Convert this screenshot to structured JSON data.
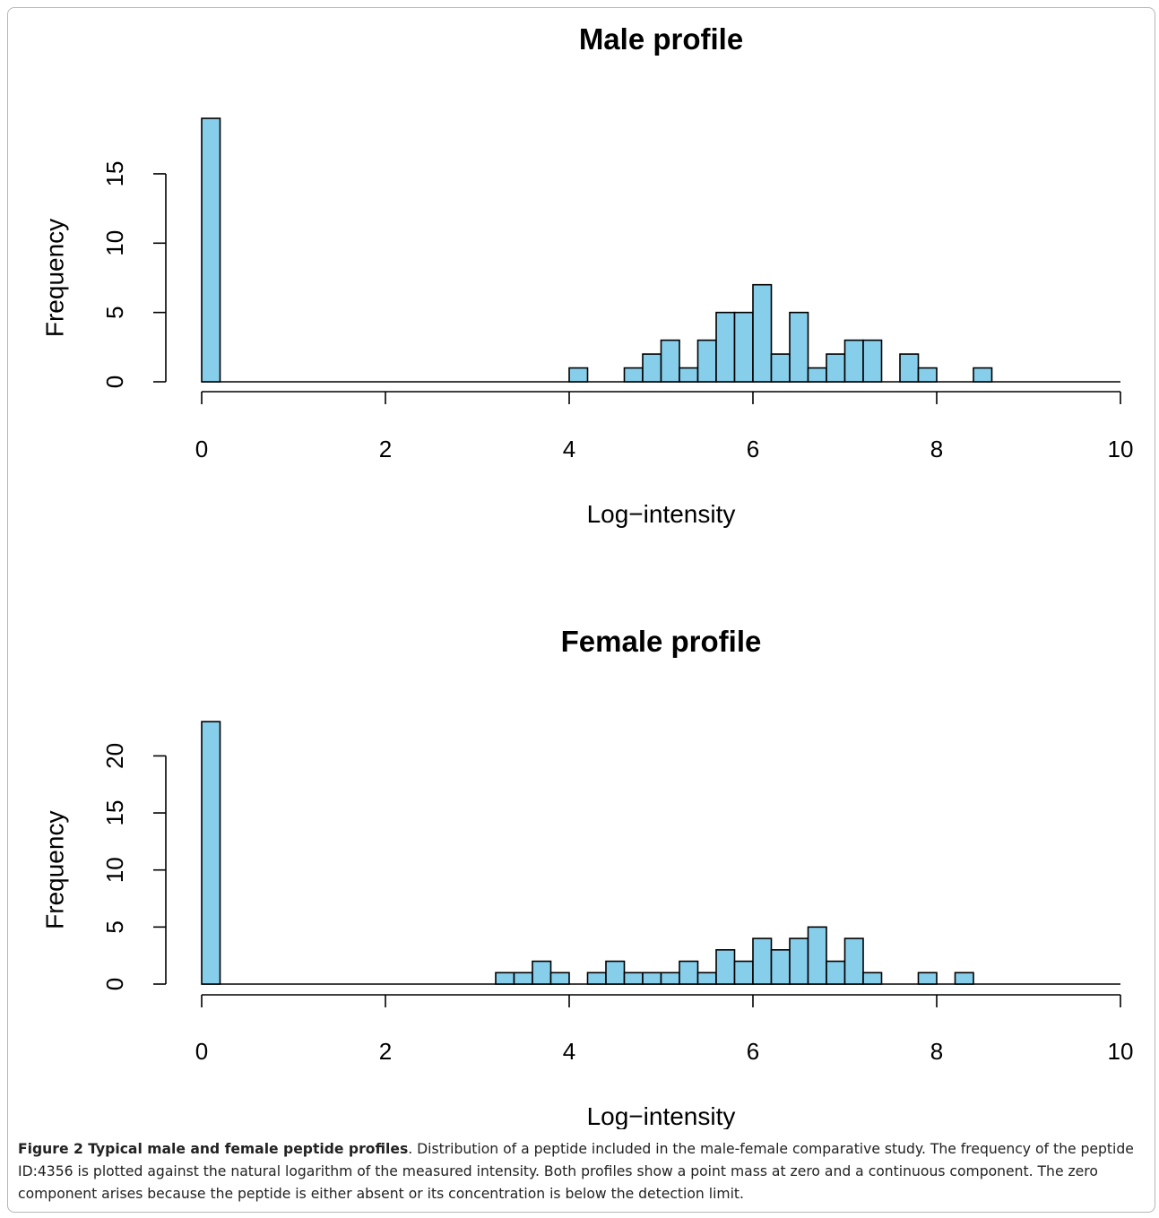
{
  "chart_data": [
    {
      "type": "bar",
      "title": "Male profile",
      "xlabel": "Log−intensity",
      "ylabel": "Frequency",
      "xlim": [
        0,
        10
      ],
      "ylim": [
        0,
        19
      ],
      "x_ticks": [
        "0",
        "2",
        "4",
        "6",
        "8",
        "10"
      ],
      "y_ticks": [
        "0",
        "5",
        "10",
        "15"
      ],
      "bin_width": 0.2,
      "bar_color": "#87ceeb",
      "bins": [
        {
          "x0": 0.0,
          "count": 19
        },
        {
          "x0": 4.0,
          "count": 1
        },
        {
          "x0": 4.6,
          "count": 1
        },
        {
          "x0": 4.8,
          "count": 2
        },
        {
          "x0": 5.0,
          "count": 3
        },
        {
          "x0": 5.2,
          "count": 1
        },
        {
          "x0": 5.4,
          "count": 3
        },
        {
          "x0": 5.6,
          "count": 5
        },
        {
          "x0": 5.8,
          "count": 5
        },
        {
          "x0": 6.0,
          "count": 7
        },
        {
          "x0": 6.2,
          "count": 2
        },
        {
          "x0": 6.4,
          "count": 5
        },
        {
          "x0": 6.6,
          "count": 1
        },
        {
          "x0": 6.8,
          "count": 2
        },
        {
          "x0": 7.0,
          "count": 3
        },
        {
          "x0": 7.2,
          "count": 3
        },
        {
          "x0": 7.6,
          "count": 2
        },
        {
          "x0": 7.8,
          "count": 1
        },
        {
          "x0": 8.4,
          "count": 1
        }
      ]
    },
    {
      "type": "bar",
      "title": "Female profile",
      "xlabel": "Log−intensity",
      "ylabel": "Frequency",
      "xlim": [
        0,
        10
      ],
      "ylim": [
        0,
        23
      ],
      "x_ticks": [
        "0",
        "2",
        "4",
        "6",
        "8",
        "10"
      ],
      "y_ticks": [
        "0",
        "5",
        "10",
        "15",
        "20"
      ],
      "bin_width": 0.2,
      "bar_color": "#87ceeb",
      "bins": [
        {
          "x0": 0.0,
          "count": 23
        },
        {
          "x0": 3.2,
          "count": 1
        },
        {
          "x0": 3.4,
          "count": 1
        },
        {
          "x0": 3.6,
          "count": 2
        },
        {
          "x0": 3.8,
          "count": 1
        },
        {
          "x0": 4.2,
          "count": 1
        },
        {
          "x0": 4.4,
          "count": 2
        },
        {
          "x0": 4.6,
          "count": 1
        },
        {
          "x0": 4.8,
          "count": 1
        },
        {
          "x0": 5.0,
          "count": 1
        },
        {
          "x0": 5.2,
          "count": 2
        },
        {
          "x0": 5.4,
          "count": 1
        },
        {
          "x0": 5.6,
          "count": 3
        },
        {
          "x0": 5.8,
          "count": 2
        },
        {
          "x0": 6.0,
          "count": 4
        },
        {
          "x0": 6.2,
          "count": 3
        },
        {
          "x0": 6.4,
          "count": 4
        },
        {
          "x0": 6.6,
          "count": 5
        },
        {
          "x0": 6.8,
          "count": 2
        },
        {
          "x0": 7.0,
          "count": 4
        },
        {
          "x0": 7.2,
          "count": 1
        },
        {
          "x0": 7.8,
          "count": 1
        },
        {
          "x0": 8.2,
          "count": 1
        }
      ]
    }
  ],
  "caption": {
    "lead": "Figure 2 Typical male and female peptide profiles",
    "text": ". Distribution of a peptide included in the male-female comparative study. The frequency of the peptide ID:4356 is plotted against the natural logarithm of the measured intensity. Both profiles show a point mass at zero and a continuous component. The zero component arises because the peptide is either absent or its concentration is below the detection limit."
  }
}
